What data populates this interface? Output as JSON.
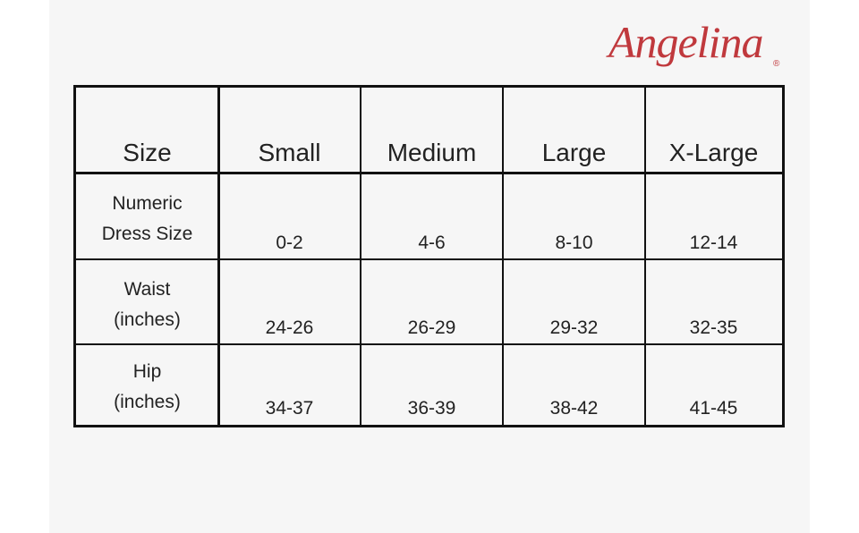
{
  "logo": {
    "text": "Angelina",
    "mark": "®"
  },
  "table": {
    "header": [
      "Size",
      "Small",
      "Medium",
      "Large",
      "X-Large"
    ],
    "rows": [
      {
        "label": [
          "Numeric",
          "Dress Size"
        ],
        "cells": [
          "0-2",
          "4-6",
          "8-10",
          "12-14"
        ]
      },
      {
        "label": [
          "Waist",
          "(inches)"
        ],
        "cells": [
          "24-26",
          "26-29",
          "29-32",
          "32-35"
        ]
      },
      {
        "label": [
          "Hip",
          "(inches)"
        ],
        "cells": [
          "34-37",
          "36-39",
          "38-42",
          "41-45"
        ]
      }
    ]
  }
}
